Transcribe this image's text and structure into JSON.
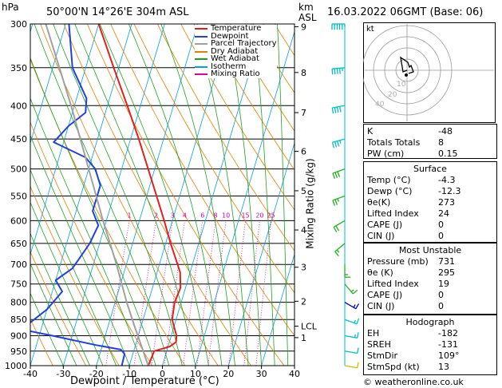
{
  "header": {
    "location": "50°00'N  14°26'E  304m  ASL",
    "datetime": "16.03.2022  06GMT  (Base: 06)",
    "hpa_unit": "hPa",
    "km_unit": "km",
    "asl_unit": "ASL"
  },
  "footer": {
    "credit": "© weatheronline.co.uk"
  },
  "chart_data": {
    "type": "skew-t",
    "xlabel": "Dewpoint / Temperature (°C)",
    "ylabel": "Mixing Ratio (g/kg)",
    "temp_ticks": [
      -40,
      -30,
      -20,
      -10,
      0,
      10,
      20,
      30,
      40
    ],
    "pressure_ticks": [
      300,
      350,
      400,
      450,
      500,
      550,
      600,
      650,
      700,
      750,
      800,
      850,
      900,
      950,
      1000
    ],
    "xlim": [
      -40,
      40
    ],
    "ylim": [
      1000,
      300
    ],
    "km_ticks": [
      {
        "label": "9",
        "p": 303
      },
      {
        "label": "8",
        "p": 356
      },
      {
        "label": "7",
        "p": 410
      },
      {
        "label": "6",
        "p": 470
      },
      {
        "label": "5",
        "p": 540
      },
      {
        "label": "4",
        "p": 620
      },
      {
        "label": "3",
        "p": 707
      },
      {
        "label": "2",
        "p": 797
      },
      {
        "label": "LCL",
        "p": 870
      },
      {
        "label": "1",
        "p": 906
      }
    ],
    "mixing_ratio_labels": [
      "1",
      "2",
      "3",
      "4",
      "6",
      "8",
      "10",
      "15",
      "20",
      "25"
    ],
    "mixing_ratios": [
      1,
      2,
      3,
      4,
      6,
      8,
      10,
      15,
      20,
      25
    ],
    "legend": [
      {
        "name": "Temperature",
        "color": "#e02020"
      },
      {
        "name": "Dewpoint",
        "color": "#2040e0"
      },
      {
        "name": "Parcel Trajectory",
        "color": "#a0a0a0"
      },
      {
        "name": "Dry Adiabat",
        "color": "#e08000"
      },
      {
        "name": "Wet Adiabat",
        "color": "#20a020"
      },
      {
        "name": "Isotherm",
        "color": "#00a0e0"
      },
      {
        "name": "Mixing Ratio",
        "color": "#e000a0"
      }
    ],
    "series": [
      {
        "name": "Temperature",
        "points": [
          [
            1000,
            -4.3
          ],
          [
            970,
            -4.0
          ],
          [
            950,
            -3.8
          ],
          [
            935,
            0.5
          ],
          [
            920,
            2.0
          ],
          [
            900,
            1.6
          ],
          [
            850,
            -1.2
          ],
          [
            800,
            -2.0
          ],
          [
            760,
            -1.5
          ],
          [
            720,
            -3.0
          ],
          [
            700,
            -4.5
          ],
          [
            650,
            -8.5
          ],
          [
            600,
            -12.5
          ],
          [
            550,
            -17.0
          ],
          [
            500,
            -22.0
          ],
          [
            450,
            -27.5
          ],
          [
            400,
            -34.0
          ],
          [
            350,
            -41.5
          ],
          [
            300,
            -50.0
          ]
        ]
      },
      {
        "name": "Dewpoint",
        "points": [
          [
            1000,
            -12.3
          ],
          [
            960,
            -12.5
          ],
          [
            945,
            -14.0
          ],
          [
            930,
            -22.0
          ],
          [
            900,
            -36.0
          ],
          [
            880,
            -46.0
          ],
          [
            860,
            -44.0
          ],
          [
            820,
            -40.0
          ],
          [
            770,
            -37.0
          ],
          [
            740,
            -40.0
          ],
          [
            710,
            -36.0
          ],
          [
            690,
            -35.0
          ],
          [
            650,
            -33.0
          ],
          [
            610,
            -32.0
          ],
          [
            580,
            -35.0
          ],
          [
            530,
            -35.0
          ],
          [
            500,
            -38.0
          ],
          [
            480,
            -42.0
          ],
          [
            455,
            -53.0
          ],
          [
            430,
            -50.0
          ],
          [
            410,
            -46.0
          ],
          [
            390,
            -47.0
          ],
          [
            350,
            -54.0
          ],
          [
            300,
            -59.0
          ]
        ]
      },
      {
        "name": "Parcel Trajectory",
        "points": [
          [
            1000,
            -4.3
          ],
          [
            870,
            -12.0
          ],
          [
            800,
            -16.5
          ],
          [
            700,
            -23.0
          ],
          [
            600,
            -31.0
          ],
          [
            500,
            -40.0
          ],
          [
            400,
            -51.0
          ],
          [
            300,
            -66.0
          ]
        ]
      }
    ],
    "hodograph": {
      "label": "kt",
      "rings_kt": [
        10,
        20,
        30,
        40
      ],
      "ring_labels": [
        "10",
        "20",
        "40"
      ]
    },
    "wind_barbs": [
      {
        "p": 300,
        "dir": 270,
        "kt": 55
      },
      {
        "p": 350,
        "dir": 265,
        "kt": 45
      },
      {
        "p": 400,
        "dir": 260,
        "kt": 40
      },
      {
        "p": 450,
        "dir": 255,
        "kt": 35
      },
      {
        "p": 500,
        "dir": 250,
        "kt": 30
      },
      {
        "p": 550,
        "dir": 250,
        "kt": 25
      },
      {
        "p": 600,
        "dir": 240,
        "kt": 20
      },
      {
        "p": 650,
        "dir": 230,
        "kt": 15
      },
      {
        "p": 700,
        "dir": 180,
        "kt": 15
      },
      {
        "p": 750,
        "dir": 140,
        "kt": 15
      },
      {
        "p": 800,
        "dir": 120,
        "kt": 15
      },
      {
        "p": 850,
        "dir": 110,
        "kt": 15
      },
      {
        "p": 900,
        "dir": 100,
        "kt": 15
      },
      {
        "p": 950,
        "dir": 100,
        "kt": 12
      },
      {
        "p": 1000,
        "dir": 100,
        "kt": 10
      }
    ]
  },
  "indices": {
    "rows": [
      {
        "k": "K",
        "v": "-48"
      },
      {
        "k": "Totals Totals",
        "v": "8"
      },
      {
        "k": "PW (cm)",
        "v": "0.15"
      }
    ]
  },
  "surface": {
    "title": "Surface",
    "rows": [
      {
        "k": "Temp (°C)",
        "v": "-4.3"
      },
      {
        "k": "Dewp (°C)",
        "v": "-12.3"
      },
      {
        "k": "θe(K)",
        "v": "273"
      },
      {
        "k": "Lifted Index",
        "v": "24"
      },
      {
        "k": "CAPE (J)",
        "v": "0"
      },
      {
        "k": "CIN (J)",
        "v": "0"
      }
    ]
  },
  "unstable": {
    "title": "Most Unstable",
    "rows": [
      {
        "k": "Pressure (mb)",
        "v": "731"
      },
      {
        "k": "θe (K)",
        "v": "295"
      },
      {
        "k": "Lifted Index",
        "v": "19"
      },
      {
        "k": "CAPE (J)",
        "v": "0"
      },
      {
        "k": "CIN (J)",
        "v": "0"
      }
    ]
  },
  "hodograph_panel": {
    "title": "Hodograph",
    "rows": [
      {
        "k": "EH",
        "v": "-182"
      },
      {
        "k": "SREH",
        "v": "-131"
      },
      {
        "k": "StmDir",
        "v": "109°"
      },
      {
        "k": "StmSpd (kt)",
        "v": "13"
      }
    ]
  }
}
